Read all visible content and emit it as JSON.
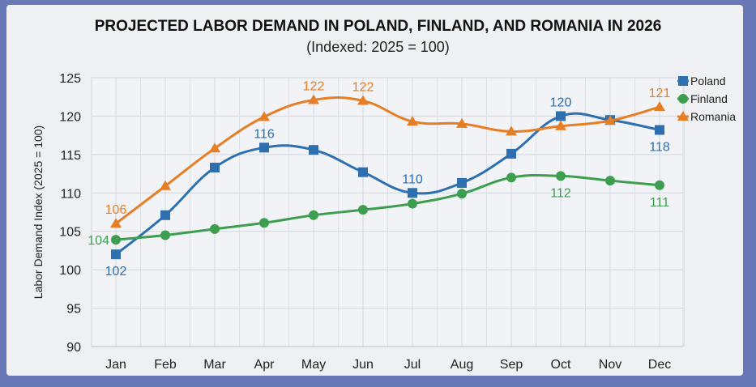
{
  "chart_data": {
    "type": "line",
    "title": "PROJECTED LABOR DEMAND IN POLAND, FINLAND, AND ROMANIA IN 2026",
    "subtitle": "(Indexed: 2025 = 100)",
    "xlabel": "",
    "ylabel": "Labor Demand Index (2025 = 100)",
    "ylim": [
      90,
      125
    ],
    "yticks": [
      90,
      95,
      100,
      105,
      110,
      115,
      120,
      125
    ],
    "grid": true,
    "legend": "top-right",
    "categories": [
      "Jan",
      "Feb",
      "Mar",
      "Apr",
      "May",
      "Jun",
      "Jul",
      "Aug",
      "Sep",
      "Oct",
      "Nov",
      "Dec"
    ],
    "series": [
      {
        "name": "Poland",
        "color": "#2e6fb0",
        "marker": "square",
        "values": [
          102,
          107.1,
          113.3,
          115.9,
          115.6,
          112.7,
          110,
          111.3,
          115.1,
          120,
          119.5,
          118.2
        ],
        "labels": {
          "0": "102",
          "3": "116",
          "6": "110",
          "9": "120",
          "11": "118"
        }
      },
      {
        "name": "Finland",
        "color": "#3e9e4f",
        "marker": "circle",
        "values": [
          103.9,
          104.5,
          105.3,
          106.1,
          107.1,
          107.8,
          108.6,
          109.9,
          112,
          112.2,
          111.6,
          111
        ],
        "labels": {
          "0": "104",
          "9": "112",
          "11": "111"
        }
      },
      {
        "name": "Romania",
        "color": "#e57e25",
        "marker": "triangle",
        "values": [
          106,
          110.9,
          115.8,
          119.9,
          122.1,
          122,
          119.3,
          119,
          118,
          118.7,
          119.4,
          121.2
        ],
        "labels": {
          "0": "106",
          "4": "122",
          "5": "122",
          "11": "121"
        }
      }
    ]
  }
}
